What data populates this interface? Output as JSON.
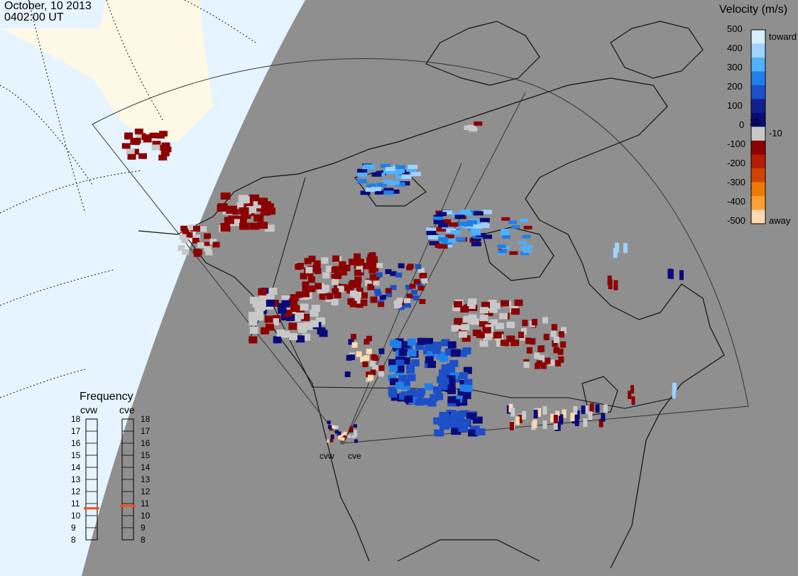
{
  "header": {
    "date": "October, 10 2013",
    "time": "0402:00 UT"
  },
  "colorbar": {
    "title": "Velocity (m/s)",
    "toward_label": "toward",
    "away_label": "away",
    "left_ticks": [
      "500",
      "400",
      "300",
      "200",
      "100",
      "0",
      "-100",
      "-200",
      "-300",
      "-400",
      "-500"
    ],
    "right_ticks": [
      "10",
      "-10"
    ],
    "colors": [
      "#d6eeff",
      "#9dd3ff",
      "#4fb1ff",
      "#1f7fe8",
      "#1c4fc8",
      "#10208c",
      "#0a0a78",
      "#c8c8c8",
      "#8b0000",
      "#b51c00",
      "#cf4400",
      "#ee7a00",
      "#ffa033",
      "#ffd9b0"
    ]
  },
  "frequency": {
    "title": "Frequency",
    "radars": [
      "cvw",
      "cve"
    ],
    "scale": [
      "18",
      "17",
      "16",
      "15",
      "14",
      "13",
      "12",
      "11",
      "10",
      "9",
      "8"
    ],
    "cvw_mhz": 10.6,
    "cve_mhz": 10.8,
    "marker_color": "#ff4a1a"
  },
  "stations": {
    "cvw": "cvw",
    "cve": "cve"
  },
  "map": {
    "background": "#8f8f8f",
    "ocean": "#e6f4ff",
    "land_polar": "#fdf9e6"
  }
}
